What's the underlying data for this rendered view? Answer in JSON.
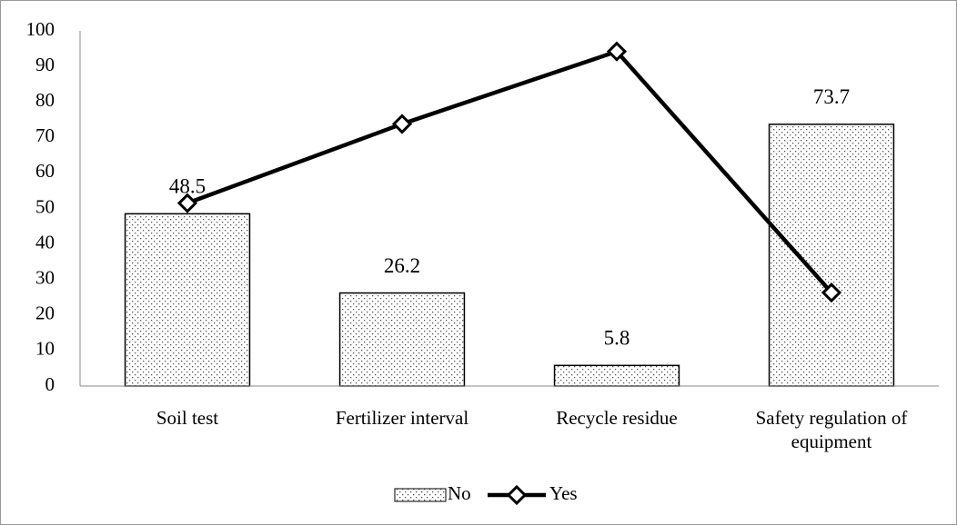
{
  "chart_data": {
    "type": "bar-line",
    "categories": [
      "Soil test",
      "Fertilizer interval",
      "Recycle residue",
      "Safety regulation of equipment"
    ],
    "series": [
      {
        "name": "No",
        "type": "bar",
        "color": "#000000",
        "values": [
          48.5,
          26.2,
          5.8,
          73.7
        ]
      },
      {
        "name": "Yes",
        "type": "line",
        "color": "#000000",
        "values": [
          51.5,
          73.8,
          94.2,
          26.3
        ]
      }
    ],
    "ylim": [
      0,
      100
    ],
    "yticks": [
      0,
      10,
      20,
      30,
      40,
      50,
      60,
      70,
      80,
      90,
      100
    ],
    "grid": false,
    "legend": "bottom"
  }
}
